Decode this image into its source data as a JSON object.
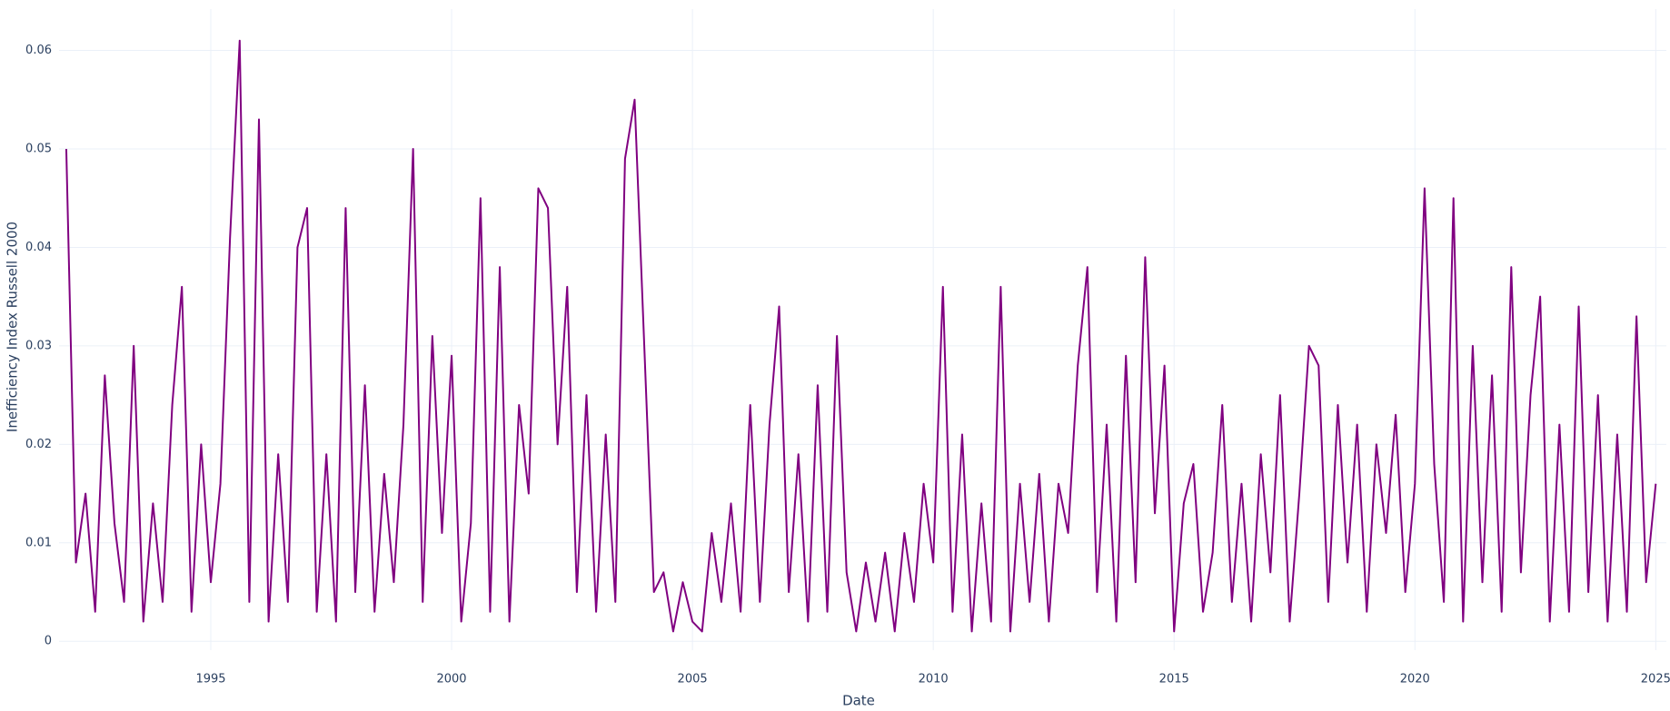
{
  "chart_data": {
    "type": "line",
    "xlabel": "Date",
    "ylabel": "Inefficiency Index Russell 2000",
    "color": "#800080",
    "grid": true,
    "xlim": [
      1991.85,
      2025.22
    ],
    "xticks": [
      1995,
      2000,
      2005,
      2010,
      2015,
      2020,
      2025
    ],
    "ylim": [
      -0.0009,
      0.0642
    ],
    "yticks": [
      0,
      0.01,
      0.02,
      0.03,
      0.04,
      0.05,
      0.06
    ],
    "x": [
      1992,
      1992.2,
      1992.4,
      1992.6,
      1992.8,
      1993,
      1993.2,
      1993.4,
      1993.6,
      1993.8,
      1994,
      1994.2,
      1994.4,
      1994.6,
      1994.8,
      1995,
      1995.2,
      1995.4,
      1995.6,
      1995.8,
      1996,
      1996.2,
      1996.4,
      1996.6,
      1996.8,
      1997,
      1997.2,
      1997.4,
      1997.6,
      1997.8,
      1998,
      1998.2,
      1998.4,
      1998.6,
      1998.8,
      1999,
      1999.2,
      1999.4,
      1999.6,
      1999.8,
      2000,
      2000.2,
      2000.4,
      2000.6,
      2000.8,
      2001,
      2001.2,
      2001.4,
      2001.6,
      2001.8,
      2002,
      2002.2,
      2002.4,
      2002.6,
      2002.8,
      2003,
      2003.2,
      2003.4,
      2003.6,
      2003.8,
      2004,
      2004.2,
      2004.4,
      2004.6,
      2004.8,
      2005,
      2005.2,
      2005.4,
      2005.6,
      2005.8,
      2006,
      2006.2,
      2006.4,
      2006.6,
      2006.8,
      2007,
      2007.2,
      2007.4,
      2007.6,
      2007.8,
      2008,
      2008.2,
      2008.4,
      2008.6,
      2008.8,
      2009,
      2009.2,
      2009.4,
      2009.6,
      2009.8,
      2010,
      2010.2,
      2010.4,
      2010.6,
      2010.8,
      2011,
      2011.2,
      2011.4,
      2011.6,
      2011.8,
      2012,
      2012.2,
      2012.4,
      2012.6,
      2012.8,
      2013,
      2013.2,
      2013.4,
      2013.6,
      2013.8,
      2014,
      2014.2,
      2014.4,
      2014.6,
      2014.8,
      2015,
      2015.2,
      2015.4,
      2015.6,
      2015.8,
      2016,
      2016.2,
      2016.4,
      2016.6,
      2016.8,
      2017,
      2017.2,
      2017.4,
      2017.6,
      2017.8,
      2018,
      2018.2,
      2018.4,
      2018.6,
      2018.8,
      2019,
      2019.2,
      2019.4,
      2019.6,
      2019.8,
      2020,
      2020.2,
      2020.4,
      2020.6,
      2020.8,
      2021,
      2021.2,
      2021.4,
      2021.6,
      2021.8,
      2022,
      2022.2,
      2022.4,
      2022.6,
      2022.8,
      2023,
      2023.2,
      2023.4,
      2023.6,
      2023.8,
      2024,
      2024.2,
      2024.4,
      2024.6,
      2024.8,
      2025
    ],
    "values": [
      0.05,
      0.008,
      0.015,
      0.003,
      0.027,
      0.012,
      0.004,
      0.03,
      0.002,
      0.014,
      0.004,
      0.024,
      0.036,
      0.003,
      0.02,
      0.006,
      0.016,
      0.041,
      0.061,
      0.004,
      0.053,
      0.002,
      0.019,
      0.004,
      0.04,
      0.044,
      0.003,
      0.019,
      0.002,
      0.044,
      0.005,
      0.026,
      0.003,
      0.017,
      0.006,
      0.022,
      0.05,
      0.004,
      0.031,
      0.011,
      0.029,
      0.002,
      0.012,
      0.045,
      0.003,
      0.038,
      0.002,
      0.024,
      0.015,
      0.046,
      0.044,
      0.02,
      0.036,
      0.005,
      0.025,
      0.003,
      0.021,
      0.004,
      0.049,
      0.055,
      0.03,
      0.005,
      0.007,
      0.001,
      0.006,
      0.002,
      0.001,
      0.011,
      0.004,
      0.014,
      0.003,
      0.024,
      0.004,
      0.022,
      0.034,
      0.005,
      0.019,
      0.002,
      0.026,
      0.003,
      0.031,
      0.007,
      0.001,
      0.008,
      0.002,
      0.009,
      0.001,
      0.011,
      0.004,
      0.016,
      0.008,
      0.036,
      0.003,
      0.021,
      0.001,
      0.014,
      0.002,
      0.036,
      0.001,
      0.016,
      0.004,
      0.017,
      0.002,
      0.016,
      0.011,
      0.028,
      0.038,
      0.005,
      0.022,
      0.002,
      0.029,
      0.006,
      0.039,
      0.013,
      0.028,
      0.001,
      0.014,
      0.018,
      0.003,
      0.009,
      0.024,
      0.004,
      0.016,
      0.002,
      0.019,
      0.007,
      0.025,
      0.002,
      0.015,
      0.03,
      0.028,
      0.004,
      0.024,
      0.008,
      0.022,
      0.003,
      0.02,
      0.011,
      0.023,
      0.005,
      0.016,
      0.046,
      0.018,
      0.004,
      0.045,
      0.002,
      0.03,
      0.006,
      0.027,
      0.003,
      0.038,
      0.007,
      0.025,
      0.035,
      0.002,
      0.022,
      0.003,
      0.034,
      0.005,
      0.025,
      0.002,
      0.021,
      0.003,
      0.033,
      0.006,
      0.016
    ]
  }
}
